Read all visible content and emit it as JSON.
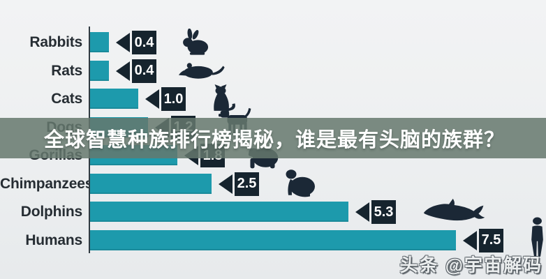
{
  "overlay": {
    "title": "全球智慧种族排行榜揭秘，谁是最有头脑的族群？",
    "color": "rgba(101,120,109,0.85)"
  },
  "watermark": {
    "text": "头条 @宇宙解码"
  },
  "chart_data": {
    "type": "bar",
    "orientation": "horizontal",
    "title": "",
    "xlabel": "",
    "ylabel": "",
    "grid": false,
    "legend": false,
    "xlim": [
      0,
      8
    ],
    "categories": [
      "Rabbits",
      "Rats",
      "Cats",
      "Dogs",
      "Gorillas",
      "Chimpanzees",
      "Dolphins",
      "Humans"
    ],
    "values": [
      0.4,
      0.4,
      1.0,
      1.2,
      1.8,
      2.5,
      5.3,
      7.5
    ],
    "value_labels": [
      "0.4",
      "0.4",
      "1.0",
      "1.2",
      "1.8",
      "2.5",
      "5.3",
      "7.5"
    ],
    "icons": [
      "rabbit-icon",
      "rat-icon",
      "cat-icon",
      "dog-icon",
      "gorilla-icon",
      "chimpanzee-icon",
      "dolphin-icon",
      "human-icon"
    ],
    "bar_color": "#1d9aac",
    "marker_color": "#16242e",
    "icon_color": "#1b2836",
    "label_color": "#262d33",
    "axis_color": "#313b42"
  }
}
